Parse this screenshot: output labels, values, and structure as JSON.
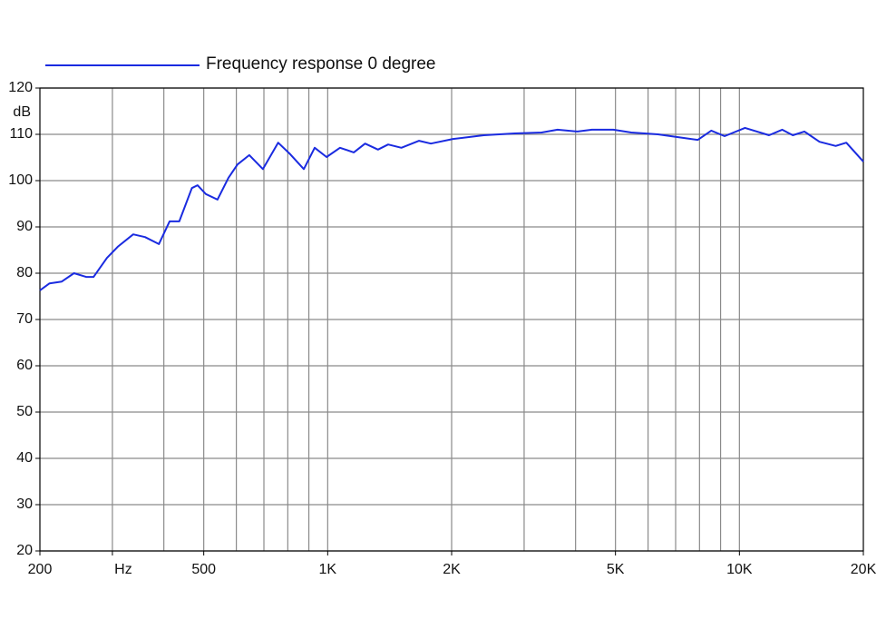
{
  "chart_data": {
    "type": "line",
    "ylabel": "dB",
    "xscale": "log",
    "xlim": [
      200,
      20000
    ],
    "ylim": [
      20,
      120
    ],
    "yticks": [
      20,
      30,
      40,
      50,
      60,
      70,
      80,
      90,
      100,
      110,
      120
    ],
    "xticks": [
      200,
      {
        "value": 300,
        "label": "Hz"
      },
      500,
      {
        "value": 1000,
        "label": "1K"
      },
      {
        "value": 2000,
        "label": "2K"
      },
      {
        "value": 5000,
        "label": "5K"
      },
      {
        "value": 10000,
        "label": "10K"
      },
      {
        "value": 20000,
        "label": "20K"
      }
    ],
    "xgrid": [
      300,
      400,
      500,
      600,
      700,
      800,
      900,
      1000,
      2000,
      3000,
      4000,
      5000,
      6000,
      7000,
      8000,
      9000,
      10000
    ],
    "grid": true,
    "legend": "top-left",
    "series": [
      {
        "name": "Frequency response 0 degree",
        "color": "#1a2be0",
        "x": [
          200,
          211,
          226,
          242,
          259,
          270,
          291,
          309,
          337,
          360,
          389,
          413,
          436,
          468,
          483,
          506,
          540,
          574,
          604,
          645,
          696,
          758,
          811,
          875,
          930,
          994,
          1071,
          1157,
          1233,
          1325,
          1402,
          1510,
          1667,
          1781,
          2015,
          2394,
          2847,
          3307,
          3617,
          4045,
          4382,
          4940,
          5462,
          6339,
          7359,
          7927,
          8542,
          9206,
          10320,
          11800,
          12700,
          13480,
          14380,
          15650,
          17130,
          18180,
          20000
        ],
        "values": [
          76.3,
          77.8,
          78.2,
          80,
          79.2,
          79.2,
          83.3,
          85.7,
          88.4,
          87.8,
          86.3,
          91.2,
          91.2,
          98.4,
          99,
          97.1,
          95.9,
          100.6,
          103.5,
          105.5,
          102.5,
          108.2,
          105.7,
          102.5,
          107.1,
          105.1,
          107.1,
          106.1,
          108,
          106.7,
          107.8,
          107.1,
          108.6,
          108,
          109,
          109.8,
          110.2,
          110.4,
          111,
          110.6,
          111,
          111,
          110.4,
          110,
          109.2,
          108.8,
          110.8,
          109.6,
          111.4,
          109.8,
          111,
          109.8,
          110.6,
          108.4,
          107.5,
          108.2,
          104.1
        ]
      }
    ]
  }
}
